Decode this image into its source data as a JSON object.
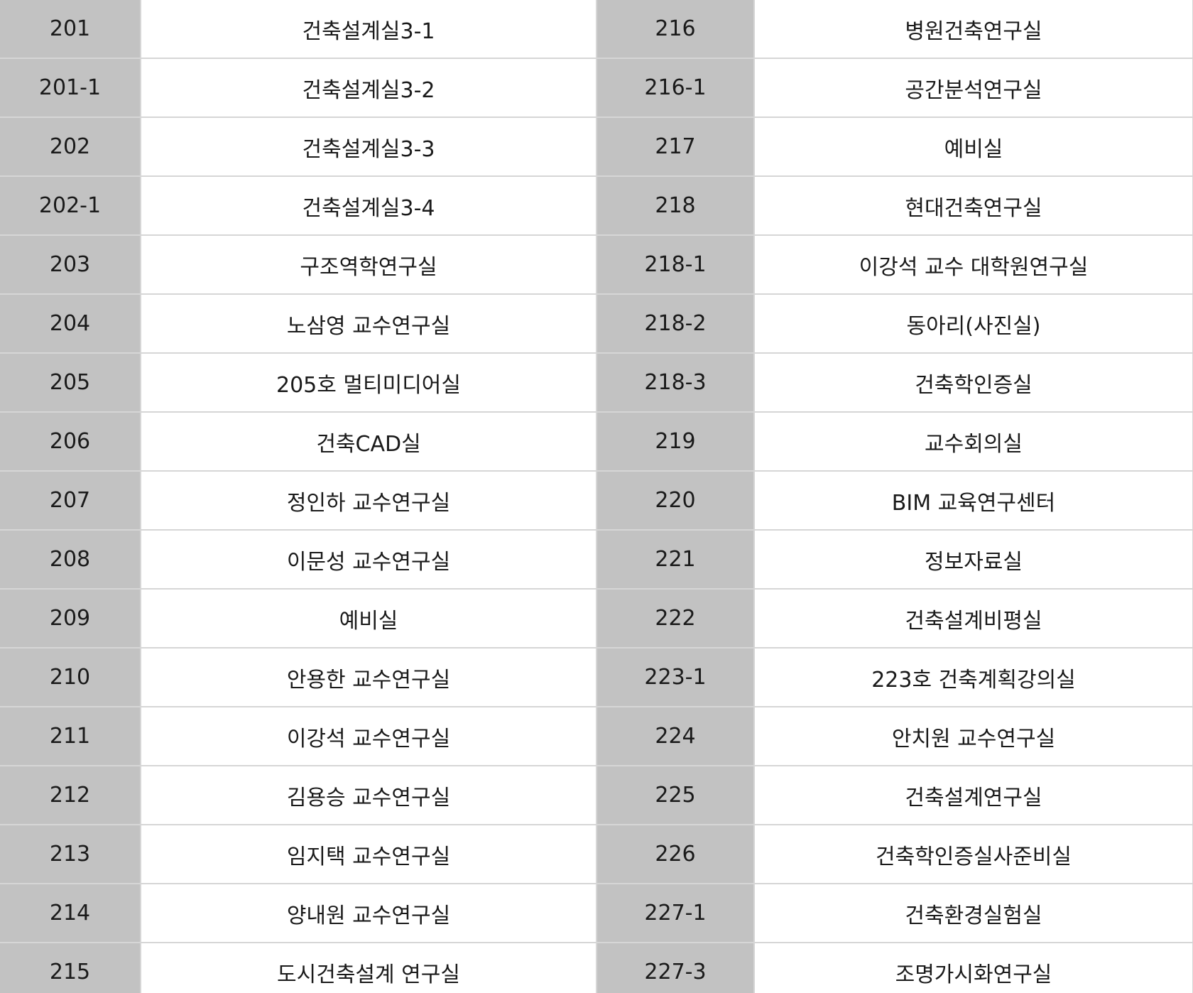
{
  "rows": [
    {
      "left_room": "201",
      "left_name": "건축설계실3-1",
      "right_room": "216",
      "right_name": "병원건축연구실"
    },
    {
      "left_room": "201-1",
      "left_name": "건축설계실3-2",
      "right_room": "216-1",
      "right_name": "공간분석연구실"
    },
    {
      "left_room": "202",
      "left_name": "건축설계실3-3",
      "right_room": "217",
      "right_name": "예비실"
    },
    {
      "left_room": "202-1",
      "left_name": "건축설계실3-4",
      "right_room": "218",
      "right_name": "현대건축연구실"
    },
    {
      "left_room": "203",
      "left_name": "구조역학연구실",
      "right_room": "218-1",
      "right_name": "이강석 교수 대학원연구실"
    },
    {
      "left_room": "204",
      "left_name": "노삼영 교수연구실",
      "right_room": "218-2",
      "right_name": "동아리(사진실)"
    },
    {
      "left_room": "205",
      "left_name": "205호 멀티미디어실",
      "right_room": "218-3",
      "right_name": "건축학인증실"
    },
    {
      "left_room": "206",
      "left_name": "건축CAD실",
      "right_room": "219",
      "right_name": "교수회의실"
    },
    {
      "left_room": "207",
      "left_name": "정인하 교수연구실",
      "right_room": "220",
      "right_name": "BIM 교육연구센터"
    },
    {
      "left_room": "208",
      "left_name": "이문성 교수연구실",
      "right_room": "221",
      "right_name": "정보자료실"
    },
    {
      "left_room": "209",
      "left_name": "예비실",
      "right_room": "222",
      "right_name": "건축설계비평실"
    },
    {
      "left_room": "210",
      "left_name": "안용한 교수연구실",
      "right_room": "223-1",
      "right_name": "223호 건축계획강의실"
    },
    {
      "left_room": "211",
      "left_name": "이강석 교수연구실",
      "right_room": "224",
      "right_name": "안치원 교수연구실"
    },
    {
      "left_room": "212",
      "left_name": "김용승 교수연구실",
      "right_room": "225",
      "right_name": "건축설계연구실"
    },
    {
      "left_room": "213",
      "left_name": "임지택 교수연구실",
      "right_room": "226",
      "right_name": "건축학인증실사준비실"
    },
    {
      "left_room": "214",
      "left_name": "양내원 교수연구실",
      "right_room": "227-1",
      "right_name": "건축환경실험실"
    },
    {
      "left_room": "215",
      "left_name": "도시건축설계 연구실",
      "right_room": "227-3",
      "right_name": "조명가시화연구실"
    }
  ]
}
